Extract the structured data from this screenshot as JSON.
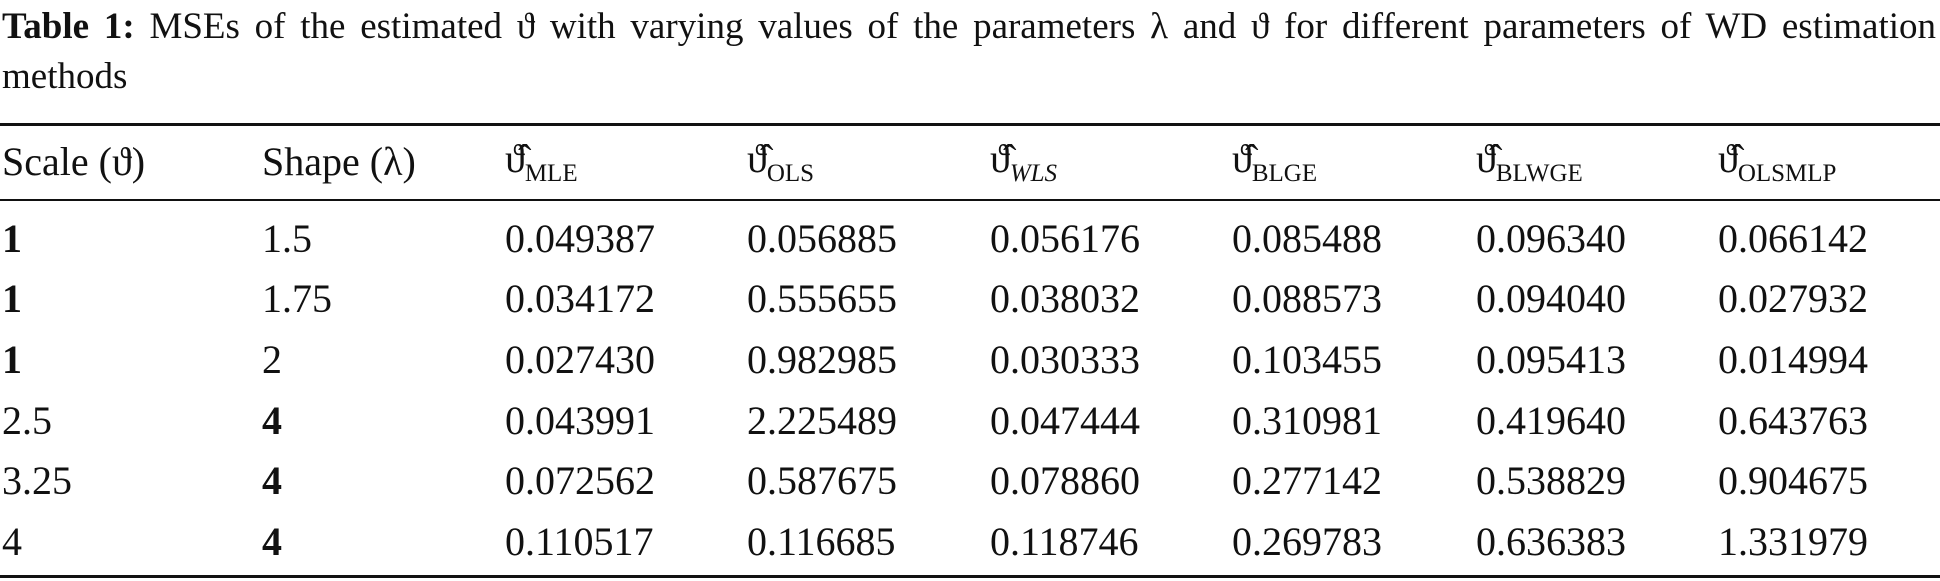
{
  "caption": {
    "label": "Table 1:",
    "text": "MSEs of the estimated ϑ with varying values of the parameters λ and ϑ for different parameters of WD estimation methods"
  },
  "table": {
    "header": [
      {
        "text": "Scale (ϑ)"
      },
      {
        "text": "Shape (λ)"
      },
      {
        "symbol": "ϑ̂",
        "sub": "MLE"
      },
      {
        "symbol": "ϑ̂",
        "sub": "OLS"
      },
      {
        "symbol": "ϑ̂",
        "sub": "WLS",
        "sub_italic": true
      },
      {
        "symbol": "ϑ̂",
        "sub": "BLGE"
      },
      {
        "symbol": "ϑ̂",
        "sub": "BLWGE"
      },
      {
        "symbol": "ϑ̂",
        "sub": "OLSMLP"
      }
    ],
    "rows": [
      [
        "1",
        "1.5",
        "0.049387",
        "0.056885",
        "0.056176",
        "0.085488",
        "0.096340",
        "0.066142"
      ],
      [
        "1",
        "1.75",
        "0.034172",
        "0.555655",
        "0.038032",
        "0.088573",
        "0.094040",
        "0.027932"
      ],
      [
        "1",
        "2",
        "0.027430",
        "0.982985",
        "0.030333",
        "0.103455",
        "0.095413",
        "0.014994"
      ],
      [
        "2.5",
        "4",
        "0.043991",
        "2.225489",
        "0.047444",
        "0.310981",
        "0.419640",
        "0.643763"
      ],
      [
        "3.25",
        "4",
        "0.072562",
        "0.587675",
        "0.078860",
        "0.277142",
        "0.538829",
        "0.904675"
      ],
      [
        "4",
        "4",
        "0.110517",
        "0.116685",
        "0.118746",
        "0.269783",
        "0.636383",
        "1.331979"
      ]
    ],
    "bold_cells": [
      [
        0,
        0
      ],
      [
        1,
        0
      ],
      [
        2,
        0
      ],
      [
        3,
        1
      ],
      [
        4,
        1
      ],
      [
        5,
        1
      ]
    ]
  }
}
